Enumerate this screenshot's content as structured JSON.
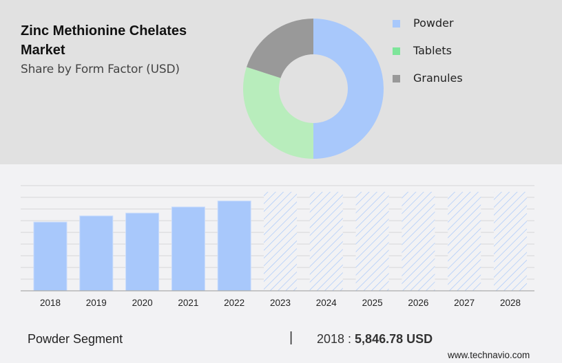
{
  "header": {
    "title": "Zinc Methionine Chelates Market",
    "subtitle": "Share by Form Factor (USD)"
  },
  "legend": [
    {
      "label": "Powder",
      "color": "#a8c8fb"
    },
    {
      "label": "Tablets",
      "color": "#7ee59a"
    },
    {
      "label": "Granules",
      "color": "#999999"
    }
  ],
  "footer": {
    "segment_label": "Powder Segment",
    "separator": "|",
    "year_prefix": "2018 : ",
    "value": "5,846.78 USD",
    "source": "www.technavio.com"
  },
  "colors": {
    "powder": "#a8c8fb",
    "tablets": "#b8edbc",
    "granules": "#999999",
    "top_bg": "#e1e1e1",
    "bottom_bg": "#f2f2f4",
    "gridline": "#d6d6d8"
  },
  "chart_data": [
    {
      "type": "pie",
      "subtype": "donut",
      "title": "Share by Form Factor (USD)",
      "labels": [
        "Powder",
        "Tablets",
        "Granules"
      ],
      "values": [
        50,
        30,
        20
      ],
      "unit": "% (approx.)",
      "legend_position": "right"
    },
    {
      "type": "bar",
      "title": "Powder Segment",
      "categories": [
        "2018",
        "2019",
        "2020",
        "2021",
        "2022",
        "2023",
        "2024",
        "2025",
        "2026",
        "2027",
        "2028"
      ],
      "values": [
        5846.78,
        6370,
        6610,
        7130,
        7640,
        null,
        null,
        null,
        null,
        null,
        null
      ],
      "forecast": [
        false,
        false,
        false,
        false,
        false,
        true,
        true,
        true,
        true,
        true,
        true
      ],
      "annotation": "2018 : 5,846.78 USD",
      "xlabel": "",
      "ylabel": "",
      "grid": true,
      "yaxis_labels_visible": false
    }
  ]
}
